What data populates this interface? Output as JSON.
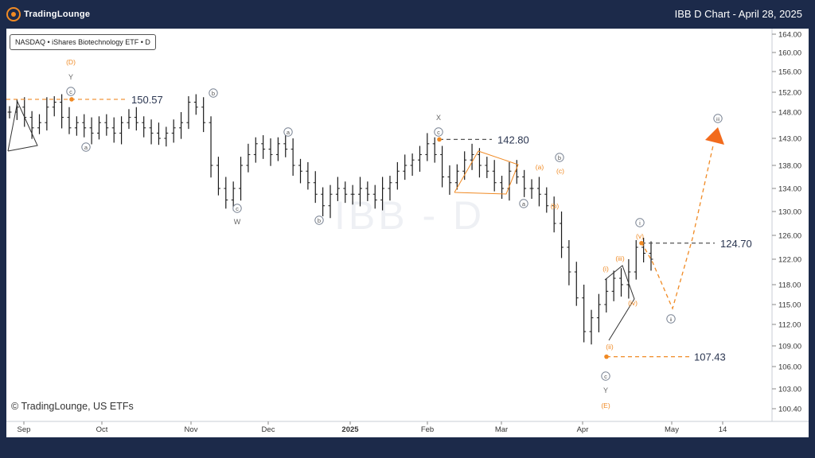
{
  "header": {
    "brand": "TradingLounge",
    "title": "IBB D Chart - April 28, 2025"
  },
  "symbol_label": "NASDAQ • iShares Biotechnology ETF • D",
  "watermark": "IBB - D",
  "copyright": "© TradingLounge, US ETFs",
  "colors": {
    "background": "#1c2a4a",
    "panel": "#ffffff",
    "bars": "#1a1a1a",
    "wave_orange": "#f08a24",
    "wave_gray": "#7a8494",
    "target_arrow": "#f26b1d"
  },
  "chart_data": {
    "type": "ohlc",
    "x_ticks": [
      "Sep",
      "Oct",
      "Nov",
      "Dec",
      "2025",
      "Feb",
      "Mar",
      "Apr",
      "May",
      "14"
    ],
    "y_ticks": [
      164.0,
      160.0,
      156.0,
      152.0,
      148.0,
      143.0,
      138.0,
      134.0,
      130.0,
      126.0,
      122.0,
      118.0,
      115.0,
      112.0,
      109.0,
      106.0,
      103.0,
      100.4
    ],
    "y_tick_labels": [
      "164.00",
      "160.00",
      "156.00",
      "152.00",
      "148.00",
      "143.00",
      "138.00",
      "134.00",
      "130.00",
      "126.00",
      "122.00",
      "118.00",
      "115.00",
      "112.00",
      "109.00",
      "106.00",
      "103.00",
      "100.40"
    ],
    "ylim": [
      98.5,
      166
    ],
    "price_levels": [
      {
        "value": 150.57,
        "label": "150.57"
      },
      {
        "value": 142.8,
        "label": "142.80"
      },
      {
        "value": 124.7,
        "label": "124.70"
      },
      {
        "value": 107.43,
        "label": "107.43"
      }
    ],
    "wave_labels": [
      {
        "text": "(D)",
        "style": "orange"
      },
      {
        "text": "Y",
        "style": "gray"
      },
      {
        "text": "c",
        "style": "circle"
      },
      {
        "text": "a",
        "style": "circle"
      },
      {
        "text": "b",
        "style": "circle"
      },
      {
        "text": "c",
        "style": "circle"
      },
      {
        "text": "W",
        "style": "gray"
      },
      {
        "text": "a",
        "style": "circle"
      },
      {
        "text": "b",
        "style": "circle"
      },
      {
        "text": "X",
        "style": "gray"
      },
      {
        "text": "c",
        "style": "circle"
      },
      {
        "text": "b",
        "style": "circle"
      },
      {
        "text": "a",
        "style": "circle"
      },
      {
        "text": "(a)",
        "style": "orange"
      },
      {
        "text": "(c)",
        "style": "orange"
      },
      {
        "text": "(b)",
        "style": "orange"
      },
      {
        "text": "i",
        "style": "circle"
      },
      {
        "text": "(v)",
        "style": "orange"
      },
      {
        "text": "(i)",
        "style": "orange"
      },
      {
        "text": "(iii)",
        "style": "orange"
      },
      {
        "text": "(ii)",
        "style": "orange"
      },
      {
        "text": "(iv)",
        "style": "orange"
      },
      {
        "text": "ii",
        "style": "circle"
      },
      {
        "text": "iii",
        "style": "circle"
      },
      {
        "text": "c",
        "style": "circle"
      },
      {
        "text": "Y",
        "style": "gray"
      },
      {
        "text": "(E)",
        "style": "orange"
      }
    ],
    "approx_closes": [
      148,
      149,
      147,
      145,
      146,
      149,
      150,
      147,
      145,
      146,
      145,
      144,
      146,
      145,
      144,
      146,
      147,
      146,
      145,
      144,
      143,
      144,
      145,
      146,
      150,
      149,
      146,
      138,
      134,
      132,
      134,
      138,
      140,
      142,
      141,
      140,
      142,
      141,
      138,
      137,
      135,
      133,
      131,
      133,
      134,
      133,
      133,
      134,
      133,
      132,
      134,
      135,
      137,
      138,
      139,
      140,
      142,
      140,
      136,
      135,
      137,
      139,
      140,
      138,
      137,
      135,
      134,
      137,
      136,
      134,
      134,
      133,
      131,
      128,
      124,
      120,
      116,
      111,
      113,
      115,
      117,
      119,
      118,
      120,
      124,
      123,
      122
    ]
  }
}
